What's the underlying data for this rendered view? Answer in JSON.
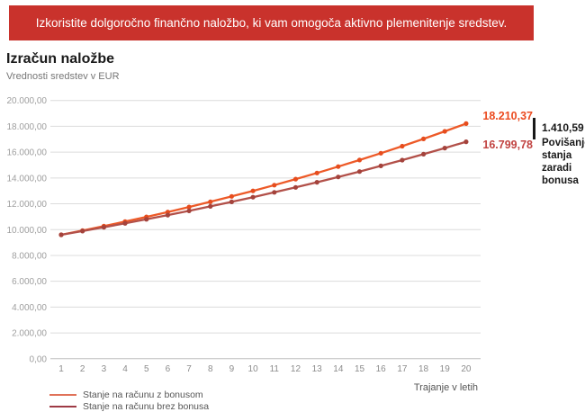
{
  "banner": {
    "text": "Izkoristite dolgoročno finančno naložbo, ki vam omogoča aktivno plemenitenje sredstev.",
    "bg_color": "#C9322C",
    "text_color": "#FFFFFF"
  },
  "header": {
    "title": "Izračun naložbe",
    "subtitle": "Vrednosti sredstev v EUR"
  },
  "annotations": {
    "with_bonus_value": "18.210,37",
    "without_bonus_value": "16.799,78",
    "difference_value": "1.410,59",
    "difference_caption": "Povišanje stanja zaradi bonusa",
    "with_bonus_value_color": "#EB4B20",
    "without_bonus_value_color": "#C14341"
  },
  "chart_data": {
    "type": "line",
    "title": "Izračun naložbe",
    "xlabel": "Trajanje v letih",
    "ylabel": "Vrednosti sredstev v EUR",
    "x": [
      1,
      2,
      3,
      4,
      5,
      6,
      7,
      8,
      9,
      10,
      11,
      12,
      13,
      14,
      15,
      16,
      17,
      18,
      19,
      20
    ],
    "series": [
      {
        "name": "Stanje na računu z bonusom",
        "color": "#ED5A28",
        "marker_color": "#E64D1E",
        "legend_color": "#E07259",
        "values": [
          9600.0,
          9929.1,
          10269.49,
          10621.55,
          10985.68,
          11362.29,
          11751.81,
          12154.69,
          12571.38,
          13002.36,
          13448.11,
          13909.14,
          14385.98,
          14879.17,
          15389.26,
          15916.85,
          16462.52,
          17026.9,
          17610.63,
          18210.37
        ]
      },
      {
        "name": "Stanje na računu brez bonusa",
        "color": "#B25049",
        "marker_color": "#A4433C",
        "legend_color": "#9E3A45",
        "values": [
          9600.0,
          9886.95,
          10182.49,
          10486.86,
          10800.33,
          11123.16,
          11455.65,
          11798.07,
          12150.73,
          12513.93,
          12887.98,
          13273.22,
          13669.97,
          14078.58,
          14499.4,
          14932.8,
          15379.15,
          15838.85,
          16312.28,
          16799.78
        ]
      }
    ],
    "ylim": [
      0,
      20000
    ],
    "ytick_step": 2000,
    "ytick_labels": [
      "0,00",
      "2.000,00",
      "4.000,00",
      "6.000,00",
      "8.000,00",
      "10.000,00",
      "12.000,00",
      "14.000,00",
      "16.000,00",
      "18.000,00",
      "20.000,00"
    ],
    "grid": true,
    "legend_position": "bottom-left",
    "final_values": {
      "with_bonus": 18210.37,
      "without_bonus": 16799.78,
      "difference": 1410.59
    }
  }
}
